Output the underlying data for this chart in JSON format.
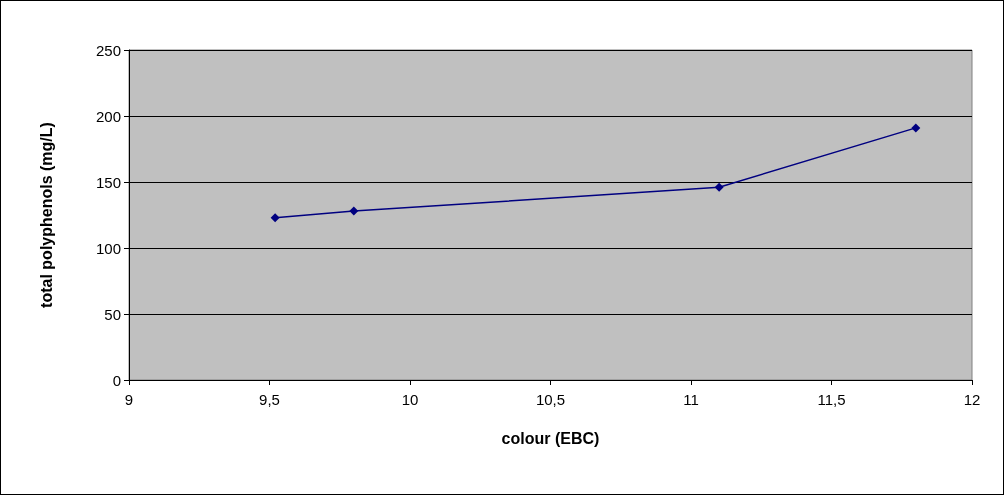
{
  "chart_data": {
    "type": "line",
    "xlabel": "colour (EBC)",
    "ylabel": "total polyphenols (mg/L)",
    "x": [
      9.52,
      9.8,
      11.1,
      11.8
    ],
    "series": [
      {
        "color": "#000080",
        "values": [
          123,
          128,
          146,
          191
        ]
      }
    ],
    "xlim": [
      9,
      12
    ],
    "xticks": [
      9,
      {
        "value": 9.5,
        "label": "9,5"
      },
      10,
      {
        "value": 10.5,
        "label": "10,5"
      },
      11,
      {
        "value": 11.5,
        "label": "11,5"
      },
      12
    ],
    "ylim": [
      0,
      250
    ],
    "yticks": [
      0,
      50,
      100,
      150,
      200,
      250
    ],
    "grid": "y",
    "legend": false,
    "marker": "diamond",
    "line_style": "solid"
  }
}
